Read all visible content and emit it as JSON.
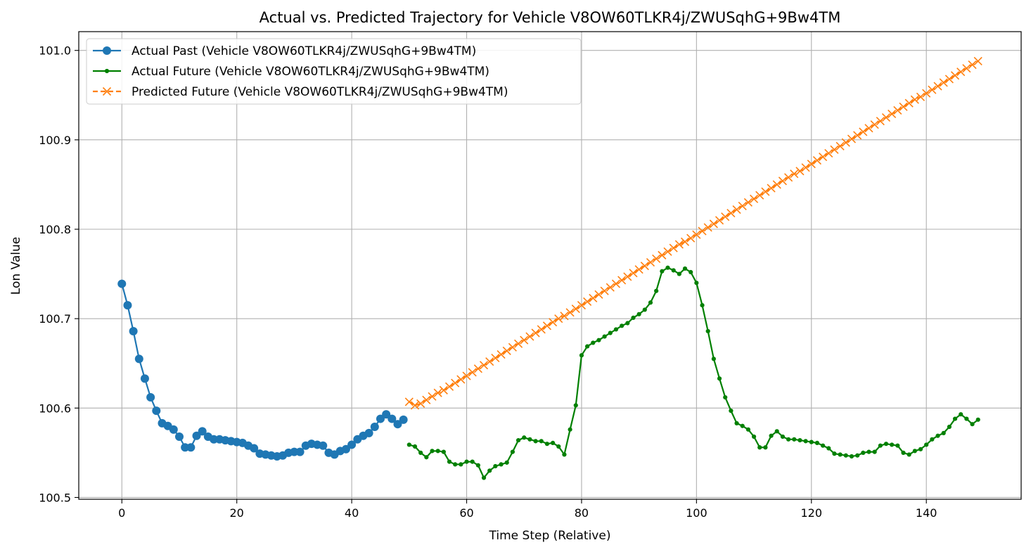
{
  "chart_data": {
    "type": "line",
    "title": "Actual vs. Predicted Trajectory for Vehicle V8OW60TLKR4j/ZWUSqhG+9Bw4TM",
    "xlabel": "Time Step (Relative)",
    "ylabel": "Lon Value",
    "xlim": [
      -7.5,
      156.5
    ],
    "ylim": [
      100.498,
      101.021
    ],
    "xticks": [
      0,
      20,
      40,
      60,
      80,
      100,
      120,
      140
    ],
    "yticks": [
      100.5,
      100.6,
      100.7,
      100.8,
      100.9,
      101.0
    ],
    "xtick_labels": [
      "0",
      "20",
      "40",
      "60",
      "80",
      "100",
      "120",
      "140"
    ],
    "ytick_labels": [
      "100.5",
      "100.6",
      "100.7",
      "100.8",
      "100.9",
      "101.0"
    ],
    "grid": true,
    "legend_position": "top-left",
    "series": [
      {
        "name": "Actual Past (Vehicle V8OW60TLKR4j/ZWUSqhG+9Bw4TM)",
        "color": "#1f77b4",
        "marker": "circle",
        "line_style": "solid",
        "x_start": 0,
        "values": [
          100.739,
          100.715,
          100.686,
          100.655,
          100.633,
          100.612,
          100.597,
          100.583,
          100.58,
          100.576,
          100.568,
          100.556,
          100.556,
          100.569,
          100.574,
          100.568,
          100.565,
          100.565,
          100.564,
          100.563,
          100.562,
          100.561,
          100.558,
          100.555,
          100.549,
          100.548,
          100.547,
          100.546,
          100.547,
          100.55,
          100.551,
          100.551,
          100.558,
          100.56,
          100.559,
          100.558,
          100.55,
          100.548,
          100.552,
          100.554,
          100.559,
          100.565,
          100.569,
          100.572,
          100.579,
          100.588,
          100.593,
          100.588,
          100.582,
          100.587
        ]
      },
      {
        "name": "Actual Future (Vehicle V8OW60TLKR4j/ZWUSqhG+9Bw4TM)",
        "color": "#008000",
        "marker": "small-dot",
        "line_style": "solid",
        "x_start": 50,
        "values": [
          100.559,
          100.557,
          100.55,
          100.545,
          100.552,
          100.552,
          100.551,
          100.54,
          100.537,
          100.537,
          100.54,
          100.54,
          100.536,
          100.522,
          100.53,
          100.535,
          100.537,
          100.539,
          100.551,
          100.564,
          100.567,
          100.565,
          100.563,
          100.563,
          100.56,
          100.561,
          100.557,
          100.548,
          100.576,
          100.603,
          100.659,
          100.669,
          100.673,
          100.676,
          100.68,
          100.684,
          100.688,
          100.692,
          100.695,
          100.701,
          100.705,
          100.71,
          100.718,
          100.731,
          100.753,
          100.757,
          100.754,
          100.75,
          100.756,
          100.752,
          100.74,
          100.715,
          100.686,
          100.655,
          100.633,
          100.612,
          100.597,
          100.583,
          100.58,
          100.576,
          100.568,
          100.556,
          100.556,
          100.569,
          100.574,
          100.568,
          100.565,
          100.565,
          100.564,
          100.563,
          100.562,
          100.561,
          100.558,
          100.555,
          100.549,
          100.548,
          100.547,
          100.546,
          100.547,
          100.55,
          100.551,
          100.551,
          100.558,
          100.56,
          100.559,
          100.558,
          100.55,
          100.548,
          100.552,
          100.554,
          100.559,
          100.565,
          100.569,
          100.572,
          100.579,
          100.588,
          100.593,
          100.588,
          100.582,
          100.587
        ]
      },
      {
        "name": "Predicted Future (Vehicle V8OW60TLKR4j/ZWUSqhG+9Bw4TM)",
        "color": "#ff7f0e",
        "marker": "x",
        "line_style": "dashed",
        "x_start": 50,
        "values": [
          100.607,
          100.603,
          100.605,
          100.609,
          100.613,
          100.617,
          100.62,
          100.624,
          100.628,
          100.632,
          100.636,
          100.64,
          100.644,
          100.648,
          100.652,
          100.656,
          100.66,
          100.664,
          100.668,
          100.672,
          100.676,
          100.68,
          100.684,
          100.688,
          100.692,
          100.696,
          100.7,
          100.703,
          100.707,
          100.711,
          100.715,
          100.719,
          100.723,
          100.727,
          100.731,
          100.735,
          100.739,
          100.743,
          100.747,
          100.751,
          100.755,
          100.759,
          100.763,
          100.767,
          100.771,
          100.775,
          100.779,
          100.783,
          100.786,
          100.79,
          100.794,
          100.798,
          100.802,
          100.806,
          100.81,
          100.814,
          100.818,
          100.822,
          100.826,
          100.83,
          100.834,
          100.838,
          100.842,
          100.846,
          100.85,
          100.854,
          100.858,
          100.862,
          100.865,
          100.869,
          100.873,
          100.877,
          100.881,
          100.885,
          100.889,
          100.893,
          100.897,
          100.901,
          100.905,
          100.909,
          100.913,
          100.917,
          100.921,
          100.925,
          100.929,
          100.933,
          100.937,
          100.941,
          100.945,
          100.948,
          100.952,
          100.956,
          100.96,
          100.964,
          100.968,
          100.972,
          100.976,
          100.98,
          100.984,
          100.988
        ]
      }
    ]
  }
}
